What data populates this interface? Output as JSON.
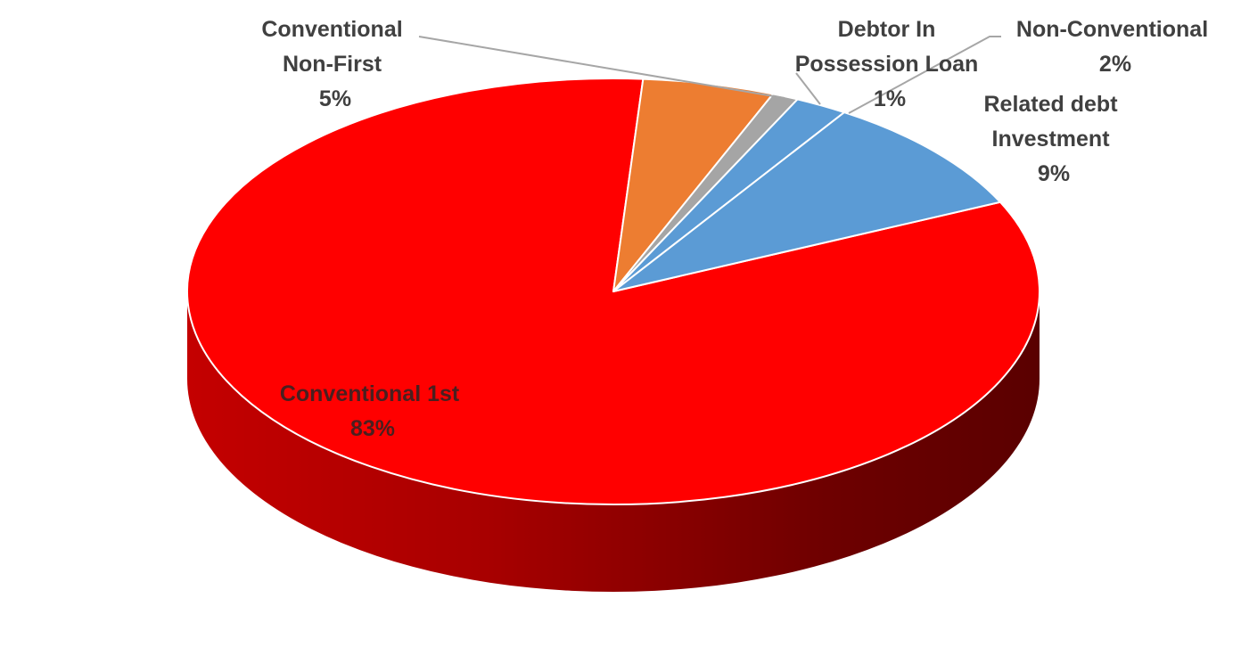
{
  "chart_data": {
    "type": "pie",
    "title": "",
    "slices": [
      {
        "label": [
          "Conventional 1st"
        ],
        "value": 83,
        "display": "83%",
        "color": "#ff0000"
      },
      {
        "label": [
          "Conventional",
          "Non-First"
        ],
        "value": 5,
        "display": "5%",
        "color": "#ed7d31"
      },
      {
        "label": [
          "Debtor In",
          "Possession Loan"
        ],
        "value": 1,
        "display": "1%",
        "color": "#a5a5a5"
      },
      {
        "label": [
          "Non-Conventional"
        ],
        "value": 2,
        "display": "2%",
        "color": "#5b9bd5"
      },
      {
        "label": [
          "Related debt",
          "Investment"
        ],
        "value": 9,
        "display": "9%",
        "color": "#5b9bd5"
      }
    ],
    "legend": "none",
    "style": "3d-pie"
  }
}
